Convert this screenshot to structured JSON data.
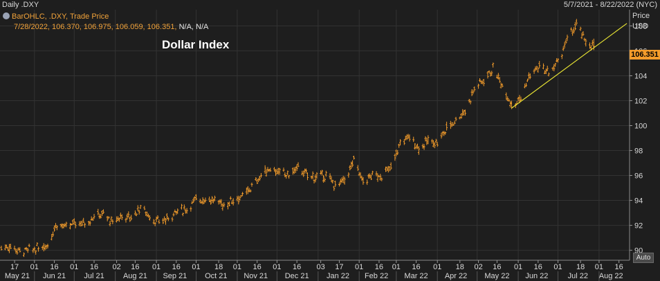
{
  "header": {
    "title": "Daily .DXY",
    "date_range": "5/7/2021 - 8/22/2022 (NYC)"
  },
  "legend": {
    "series_label": "BarOHLC, .DXY, Trade Price",
    "ohlc_values": "7/28/2022, 106.370, 106.975, 106.059, 106.351,",
    "trailing": "N/A, N/A"
  },
  "annotation": "Dollar Index",
  "axis": {
    "price_label": "Price",
    "currency_label": "USD",
    "auto_label": "Auto"
  },
  "last_price": "106.351",
  "colors": {
    "background": "#1e1e1e",
    "grid": "#333333",
    "bars": "#f39c2b",
    "trendline": "#e6e233",
    "last_price_tag": "#f39c2b",
    "text": "#d9d9d9"
  },
  "chart_data": {
    "type": "ohlc",
    "series": [
      {
        "name": ".DXY",
        "values": [
          {
            "date": "2021-05-07",
            "close": 90.2
          },
          {
            "date": "2021-05-14",
            "close": 90.3
          },
          {
            "date": "2021-05-21",
            "close": 89.9
          },
          {
            "date": "2021-05-28",
            "close": 90.0
          },
          {
            "date": "2021-06-04",
            "close": 90.2
          },
          {
            "date": "2021-06-11",
            "close": 90.5
          },
          {
            "date": "2021-06-18",
            "close": 92.2
          },
          {
            "date": "2021-06-25",
            "close": 91.8
          },
          {
            "date": "2021-07-02",
            "close": 92.2
          },
          {
            "date": "2021-07-09",
            "close": 92.2
          },
          {
            "date": "2021-07-16",
            "close": 92.7
          },
          {
            "date": "2021-07-23",
            "close": 92.9
          },
          {
            "date": "2021-07-30",
            "close": 92.2
          },
          {
            "date": "2021-08-06",
            "close": 92.8
          },
          {
            "date": "2021-08-13",
            "close": 92.6
          },
          {
            "date": "2021-08-20",
            "close": 93.5
          },
          {
            "date": "2021-08-27",
            "close": 92.7
          },
          {
            "date": "2021-09-03",
            "close": 92.2
          },
          {
            "date": "2021-09-10",
            "close": 92.6
          },
          {
            "date": "2021-09-17",
            "close": 93.2
          },
          {
            "date": "2021-09-24",
            "close": 93.3
          },
          {
            "date": "2021-10-01",
            "close": 94.1
          },
          {
            "date": "2021-10-08",
            "close": 94.1
          },
          {
            "date": "2021-10-15",
            "close": 94.0
          },
          {
            "date": "2021-10-22",
            "close": 93.6
          },
          {
            "date": "2021-10-29",
            "close": 94.1
          },
          {
            "date": "2021-11-05",
            "close": 94.3
          },
          {
            "date": "2021-11-12",
            "close": 95.1
          },
          {
            "date": "2021-11-19",
            "close": 96.0
          },
          {
            "date": "2021-11-26",
            "close": 96.6
          },
          {
            "date": "2021-12-03",
            "close": 96.2
          },
          {
            "date": "2021-12-10",
            "close": 96.1
          },
          {
            "date": "2021-12-17",
            "close": 96.6
          },
          {
            "date": "2021-12-24",
            "close": 96.0
          },
          {
            "date": "2021-12-31",
            "close": 95.9
          },
          {
            "date": "2022-01-07",
            "close": 96.0
          },
          {
            "date": "2022-01-14",
            "close": 95.2
          },
          {
            "date": "2022-01-21",
            "close": 95.6
          },
          {
            "date": "2022-01-28",
            "close": 97.2
          },
          {
            "date": "2022-02-04",
            "close": 95.5
          },
          {
            "date": "2022-02-11",
            "close": 96.0
          },
          {
            "date": "2022-02-18",
            "close": 96.0
          },
          {
            "date": "2022-02-25",
            "close": 96.6
          },
          {
            "date": "2022-03-04",
            "close": 98.6
          },
          {
            "date": "2022-03-11",
            "close": 99.1
          },
          {
            "date": "2022-03-18",
            "close": 98.2
          },
          {
            "date": "2022-03-25",
            "close": 98.8
          },
          {
            "date": "2022-04-01",
            "close": 98.6
          },
          {
            "date": "2022-04-08",
            "close": 99.8
          },
          {
            "date": "2022-04-15",
            "close": 100.5
          },
          {
            "date": "2022-04-22",
            "close": 101.2
          },
          {
            "date": "2022-04-29",
            "close": 103.0
          },
          {
            "date": "2022-05-06",
            "close": 103.7
          },
          {
            "date": "2022-05-13",
            "close": 104.6
          },
          {
            "date": "2022-05-20",
            "close": 103.2
          },
          {
            "date": "2022-05-27",
            "close": 101.7
          },
          {
            "date": "2022-06-03",
            "close": 102.2
          },
          {
            "date": "2022-06-10",
            "close": 104.1
          },
          {
            "date": "2022-06-17",
            "close": 104.7
          },
          {
            "date": "2022-06-24",
            "close": 104.2
          },
          {
            "date": "2022-07-01",
            "close": 105.1
          },
          {
            "date": "2022-07-08",
            "close": 106.9
          },
          {
            "date": "2022-07-15",
            "close": 108.1
          },
          {
            "date": "2022-07-22",
            "close": 106.7
          },
          {
            "date": "2022-07-28",
            "open": 106.37,
            "high": 106.975,
            "low": 106.059,
            "close": 106.351
          }
        ]
      }
    ],
    "y_ticks": [
      "90",
      "92",
      "94",
      "96",
      "98",
      "100",
      "102",
      "104",
      "106",
      "108"
    ],
    "ylim": [
      89.2,
      109.3
    ],
    "x_day_ticks": [
      "17",
      "01",
      "16",
      "01",
      "16",
      "02",
      "16",
      "01",
      "16",
      "01",
      "18",
      "01",
      "16",
      "01",
      "16",
      "03",
      "17",
      "01",
      "16",
      "01",
      "16",
      "01",
      "18",
      "02",
      "16",
      "01",
      "16",
      "01",
      "16",
      "01",
      "18",
      "01",
      "16"
    ],
    "x_month_ticks": [
      "May 21",
      "Jun 21",
      "Jul 21",
      "Aug 21",
      "Sep 21",
      "Oct 21",
      "Nov 21",
      "Dec 21",
      "Jan 22",
      "Feb 22",
      "Mar 22",
      "Apr 22",
      "May 22",
      "Jun 22",
      "Jul 22",
      "Aug 22"
    ],
    "trendline": {
      "from": {
        "date": "2022-05-27",
        "value": 101.4
      },
      "to": {
        "date": "2022-08-22",
        "value": 108.2
      }
    },
    "grid": true
  }
}
